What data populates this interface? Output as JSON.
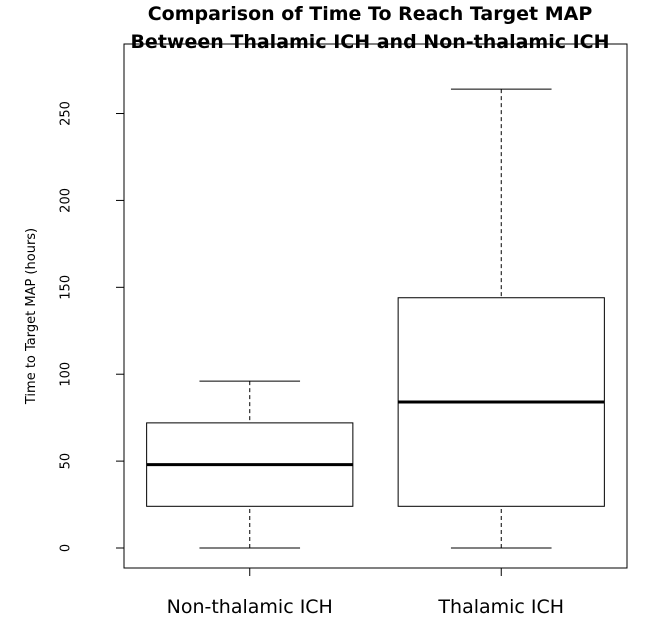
{
  "chart_data": {
    "type": "box",
    "title": [
      "Comparison of Time To Reach Target MAP",
      "Between Thalamic ICH and Non-thalamic ICH"
    ],
    "y_label": "Time to Target MAP (hours)",
    "categories": [
      "Non-thalamic ICH",
      "Thalamic ICH"
    ],
    "boxes": [
      {
        "low": 0,
        "q1": 24,
        "median": 48,
        "q3": 72,
        "high": 96
      },
      {
        "low": 0,
        "q1": 24,
        "median": 84,
        "q3": 144,
        "high": 264
      }
    ],
    "color": "#000000",
    "ylim": [
      -11.5,
      290
    ],
    "yticks": [
      0,
      50,
      100,
      150,
      200,
      250
    ],
    "grid": false
  }
}
